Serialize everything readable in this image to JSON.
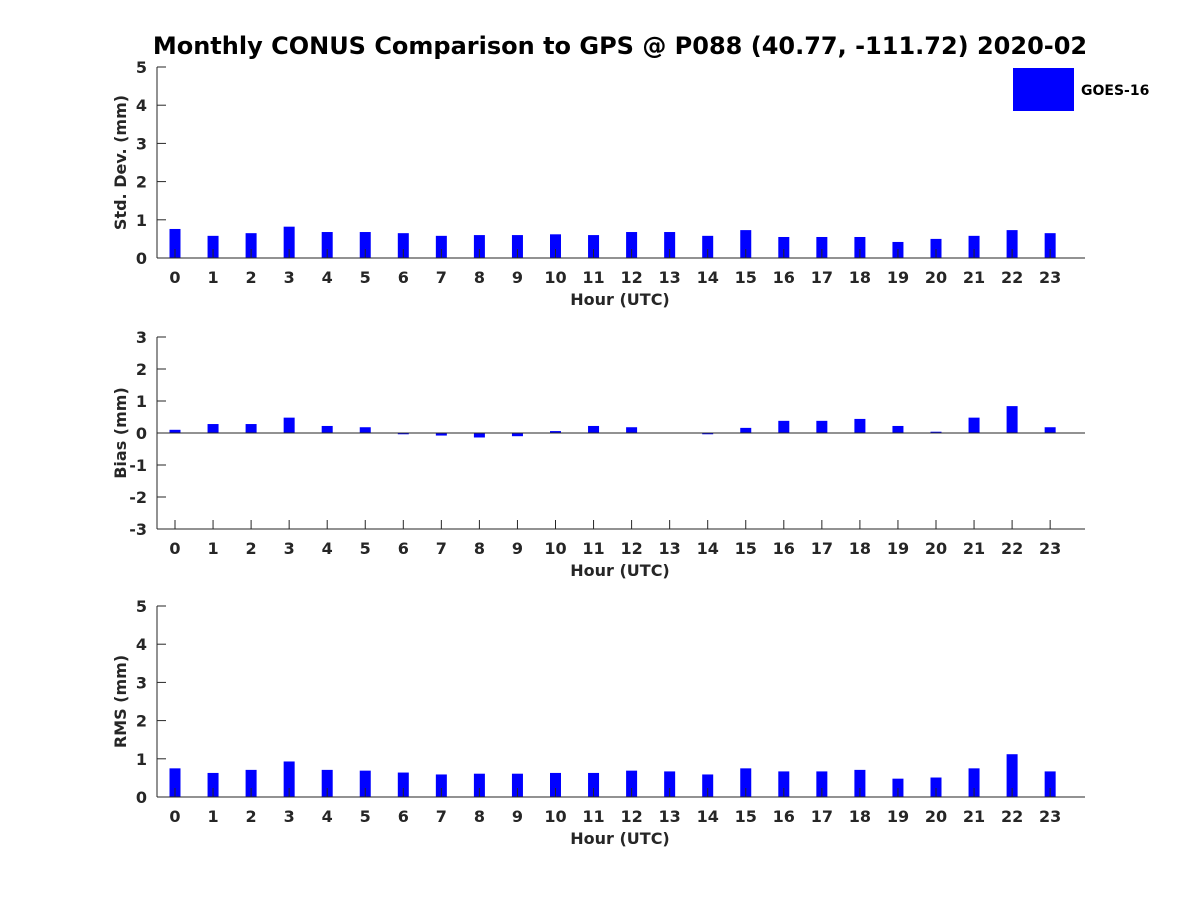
{
  "title": "Monthly CONUS Comparison to GPS @ P088 (40.77, -111.72) 2020-02",
  "legend": {
    "label": "GOES-16",
    "color": "#0000ff",
    "placement": "top-right"
  },
  "chart_data": [
    {
      "type": "bar",
      "xlabel": "Hour (UTC)",
      "ylabel": "Std. Dev. (mm)",
      "ylim": [
        0,
        5
      ],
      "yticks": [
        0,
        1,
        2,
        3,
        4,
        5
      ],
      "categories": [
        "0",
        "1",
        "2",
        "3",
        "4",
        "5",
        "6",
        "7",
        "8",
        "9",
        "10",
        "11",
        "12",
        "13",
        "14",
        "15",
        "16",
        "17",
        "18",
        "19",
        "20",
        "21",
        "22",
        "23"
      ],
      "series": [
        {
          "name": "GOES-16",
          "values": [
            0.76,
            0.58,
            0.65,
            0.82,
            0.68,
            0.68,
            0.65,
            0.58,
            0.6,
            0.6,
            0.62,
            0.6,
            0.68,
            0.68,
            0.58,
            0.73,
            0.55,
            0.55,
            0.55,
            0.42,
            0.5,
            0.58,
            0.73,
            0.65
          ]
        }
      ]
    },
    {
      "type": "bar",
      "xlabel": "Hour (UTC)",
      "ylabel": "Bias (mm)",
      "ylim": [
        -3,
        3
      ],
      "yticks": [
        -3,
        -2,
        -1,
        0,
        1,
        2,
        3
      ],
      "categories": [
        "0",
        "1",
        "2",
        "3",
        "4",
        "5",
        "6",
        "7",
        "8",
        "9",
        "10",
        "11",
        "12",
        "13",
        "14",
        "15",
        "16",
        "17",
        "18",
        "19",
        "20",
        "21",
        "22",
        "23"
      ],
      "series": [
        {
          "name": "GOES-16",
          "values": [
            0.1,
            0.28,
            0.28,
            0.48,
            0.22,
            0.18,
            -0.04,
            -0.08,
            -0.14,
            -0.1,
            0.06,
            0.22,
            0.18,
            0.0,
            -0.04,
            0.16,
            0.38,
            0.38,
            0.44,
            0.22,
            0.04,
            0.48,
            0.84,
            0.18
          ]
        }
      ]
    },
    {
      "type": "bar",
      "xlabel": "Hour (UTC)",
      "ylabel": "RMS (mm)",
      "ylim": [
        0,
        5
      ],
      "yticks": [
        0,
        1,
        2,
        3,
        4,
        5
      ],
      "categories": [
        "0",
        "1",
        "2",
        "3",
        "4",
        "5",
        "6",
        "7",
        "8",
        "9",
        "10",
        "11",
        "12",
        "13",
        "14",
        "15",
        "16",
        "17",
        "18",
        "19",
        "20",
        "21",
        "22",
        "23"
      ],
      "series": [
        {
          "name": "GOES-16",
          "values": [
            0.75,
            0.63,
            0.71,
            0.93,
            0.71,
            0.69,
            0.64,
            0.59,
            0.61,
            0.61,
            0.63,
            0.63,
            0.69,
            0.67,
            0.59,
            0.75,
            0.67,
            0.67,
            0.71,
            0.48,
            0.51,
            0.75,
            1.12,
            0.67
          ]
        }
      ]
    }
  ]
}
